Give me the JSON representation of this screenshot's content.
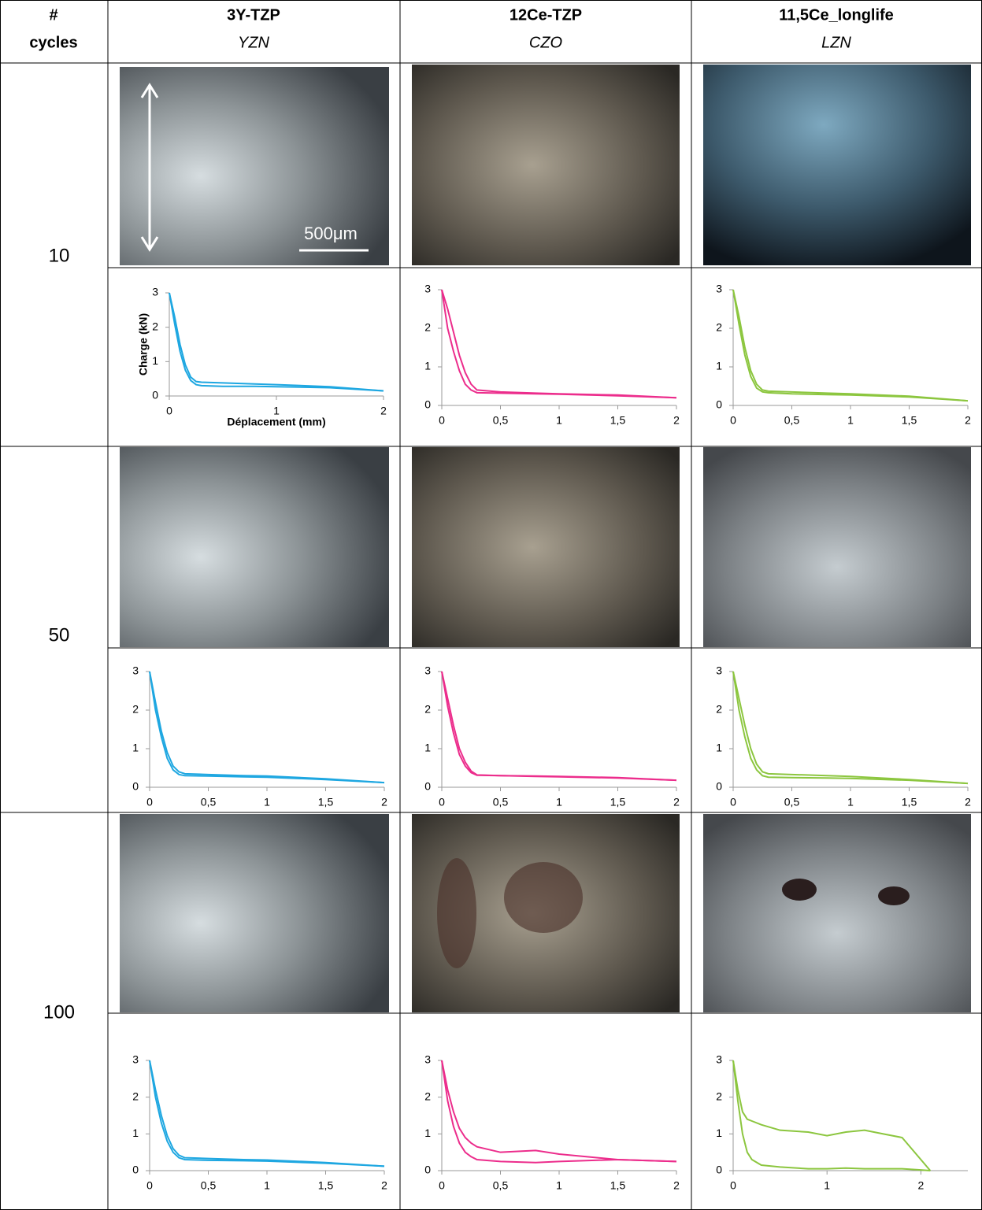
{
  "table": {
    "header": {
      "cycles": [
        "#",
        "cycles"
      ],
      "columns": [
        {
          "name": "3Y-TZP",
          "code": "YZN"
        },
        {
          "name": "12Ce-TZP",
          "code": "CZO"
        },
        {
          "name": "11,5Ce_longlife",
          "code": "LZN"
        }
      ]
    },
    "rows": [
      "10",
      "50",
      "100"
    ],
    "scale_bar": "500μm"
  },
  "chart_data": [
    {
      "type": "line",
      "y_label": "Charge (kN)",
      "x_label": "Déplacement (mm)",
      "x": [
        0,
        0.05,
        0.1,
        0.15,
        0.2,
        0.25,
        0.3,
        0.5,
        0.8,
        1,
        1.5,
        2
      ],
      "series": [
        {
          "color": "#1ea7e1",
          "values": [
            3,
            2.3,
            1.5,
            0.9,
            0.55,
            0.42,
            0.4,
            0.38,
            0.35,
            0.33,
            0.27,
            0.15
          ]
        },
        {
          "color": "#1ea7e1",
          "values": [
            3,
            2.1,
            1.3,
            0.75,
            0.45,
            0.33,
            0.3,
            0.28,
            0.28,
            0.27,
            0.24,
            0.15
          ]
        }
      ],
      "xlim": [
        0,
        2
      ],
      "ylim": [
        0,
        3
      ],
      "xticks": [
        0,
        1,
        2
      ],
      "yticks": [
        0,
        1,
        2,
        3
      ]
    },
    {
      "type": "line",
      "x": [
        0,
        0.05,
        0.1,
        0.15,
        0.2,
        0.25,
        0.3,
        0.5,
        0.8,
        1,
        1.5,
        2
      ],
      "series": [
        {
          "color": "#ec2d8c",
          "values": [
            3,
            2.5,
            1.9,
            1.3,
            0.85,
            0.55,
            0.4,
            0.35,
            0.32,
            0.3,
            0.27,
            0.2
          ]
        },
        {
          "color": "#ec2d8c",
          "values": [
            3,
            2.0,
            1.4,
            0.9,
            0.55,
            0.4,
            0.33,
            0.32,
            0.3,
            0.29,
            0.25,
            0.2
          ]
        }
      ],
      "xlim": [
        0,
        2
      ],
      "ylim": [
        0,
        3
      ],
      "xticks": [
        0,
        {
          "value": 0.5,
          "label": "0,5"
        },
        1,
        {
          "value": 1.5,
          "label": "1,5"
        },
        2
      ],
      "yticks": [
        0,
        1,
        2,
        3
      ]
    },
    {
      "type": "line",
      "x": [
        0,
        0.05,
        0.1,
        0.15,
        0.2,
        0.25,
        0.3,
        0.5,
        0.8,
        1,
        1.5,
        2
      ],
      "series": [
        {
          "color": "#8cc63f",
          "values": [
            3,
            2.3,
            1.5,
            0.9,
            0.55,
            0.4,
            0.37,
            0.35,
            0.32,
            0.3,
            0.24,
            0.12
          ]
        },
        {
          "color": "#8cc63f",
          "values": [
            3,
            2.1,
            1.3,
            0.75,
            0.45,
            0.35,
            0.33,
            0.3,
            0.28,
            0.27,
            0.22,
            0.12
          ]
        }
      ],
      "xlim": [
        0,
        2
      ],
      "ylim": [
        0,
        3
      ],
      "xticks": [
        0,
        {
          "value": 0.5,
          "label": "0,5"
        },
        1,
        {
          "value": 1.5,
          "label": "1,5"
        },
        2
      ],
      "yticks": [
        0,
        1,
        2,
        3
      ]
    },
    {
      "type": "line",
      "x": [
        0,
        0.05,
        0.1,
        0.15,
        0.2,
        0.25,
        0.3,
        0.5,
        0.8,
        1,
        1.5,
        2
      ],
      "series": [
        {
          "color": "#1ea7e1",
          "values": [
            3,
            2.2,
            1.45,
            0.9,
            0.55,
            0.4,
            0.35,
            0.33,
            0.3,
            0.29,
            0.22,
            0.12
          ]
        },
        {
          "color": "#1ea7e1",
          "values": [
            3,
            2.0,
            1.3,
            0.75,
            0.45,
            0.33,
            0.3,
            0.29,
            0.27,
            0.26,
            0.2,
            0.12
          ]
        }
      ],
      "xlim": [
        0,
        2
      ],
      "ylim": [
        0,
        3
      ],
      "xticks": [
        0,
        {
          "value": 0.5,
          "label": "0,5"
        },
        1,
        {
          "value": 1.5,
          "label": "1,5"
        },
        2
      ],
      "yticks": [
        0,
        1,
        2,
        3
      ]
    },
    {
      "type": "line",
      "x": [
        0,
        0.05,
        0.1,
        0.15,
        0.2,
        0.25,
        0.3,
        0.5,
        0.8,
        1,
        1.5,
        2
      ],
      "series": [
        {
          "color": "#ec2d8c",
          "values": [
            3,
            2.3,
            1.6,
            1.0,
            0.65,
            0.42,
            0.32,
            0.3,
            0.29,
            0.28,
            0.25,
            0.18
          ]
        },
        {
          "color": "#ec2d8c",
          "values": [
            3,
            2.1,
            1.4,
            0.85,
            0.55,
            0.38,
            0.31,
            0.3,
            0.28,
            0.27,
            0.24,
            0.18
          ]
        }
      ],
      "xlim": [
        0,
        2
      ],
      "ylim": [
        0,
        3
      ],
      "xticks": [
        0,
        {
          "value": 0.5,
          "label": "0,5"
        },
        1,
        {
          "value": 1.5,
          "label": "1,5"
        },
        2
      ],
      "yticks": [
        0,
        1,
        2,
        3
      ]
    },
    {
      "type": "line",
      "x": [
        0,
        0.05,
        0.1,
        0.15,
        0.2,
        0.25,
        0.3,
        0.5,
        0.8,
        1,
        1.5,
        2
      ],
      "series": [
        {
          "color": "#8cc63f",
          "values": [
            3,
            2.3,
            1.6,
            1.0,
            0.6,
            0.4,
            0.35,
            0.33,
            0.3,
            0.28,
            0.2,
            0.1
          ]
        },
        {
          "color": "#8cc63f",
          "values": [
            3,
            2.0,
            1.3,
            0.75,
            0.45,
            0.3,
            0.26,
            0.25,
            0.24,
            0.23,
            0.18,
            0.1
          ]
        }
      ],
      "xlim": [
        0,
        2
      ],
      "ylim": [
        0,
        3
      ],
      "xticks": [
        0,
        {
          "value": 0.5,
          "label": "0,5"
        },
        1,
        {
          "value": 1.5,
          "label": "1,5"
        },
        2
      ],
      "yticks": [
        0,
        1,
        2,
        3
      ]
    },
    {
      "type": "line",
      "x": [
        0,
        0.05,
        0.1,
        0.15,
        0.2,
        0.25,
        0.3,
        0.5,
        0.8,
        1,
        1.5,
        2
      ],
      "series": [
        {
          "color": "#1ea7e1",
          "values": [
            3,
            2.2,
            1.5,
            0.95,
            0.6,
            0.42,
            0.35,
            0.33,
            0.3,
            0.29,
            0.22,
            0.12
          ]
        },
        {
          "color": "#1ea7e1",
          "values": [
            3,
            2.0,
            1.3,
            0.8,
            0.5,
            0.35,
            0.3,
            0.28,
            0.27,
            0.26,
            0.2,
            0.12
          ]
        }
      ],
      "xlim": [
        0,
        2
      ],
      "ylim": [
        0,
        3
      ],
      "xticks": [
        0,
        {
          "value": 0.5,
          "label": "0,5"
        },
        1,
        {
          "value": 1.5,
          "label": "1,5"
        },
        2
      ],
      "yticks": [
        0,
        1,
        2,
        3
      ]
    },
    {
      "type": "line",
      "x": [
        0,
        0.05,
        0.1,
        0.15,
        0.2,
        0.25,
        0.3,
        0.5,
        0.8,
        1,
        1.5,
        2
      ],
      "series": [
        {
          "color": "#ec2d8c",
          "values": [
            3,
            2.2,
            1.6,
            1.15,
            0.9,
            0.75,
            0.65,
            0.5,
            0.55,
            0.45,
            0.3,
            0.25
          ]
        },
        {
          "color": "#ec2d8c",
          "values": [
            3,
            1.9,
            1.2,
            0.75,
            0.5,
            0.38,
            0.3,
            0.25,
            0.22,
            0.25,
            0.3,
            0.25
          ]
        }
      ],
      "xlim": [
        0,
        2
      ],
      "ylim": [
        0,
        3
      ],
      "xticks": [
        0,
        {
          "value": 0.5,
          "label": "0,5"
        },
        1,
        {
          "value": 1.5,
          "label": "1,5"
        },
        2
      ],
      "yticks": [
        0,
        1,
        2,
        3
      ]
    },
    {
      "type": "line",
      "x": [
        0,
        0.05,
        0.1,
        0.15,
        0.2,
        0.3,
        0.5,
        0.8,
        1,
        1.2,
        1.4,
        1.6,
        1.8,
        2,
        2.1
      ],
      "series": [
        {
          "color": "#8cc63f",
          "values": [
            3,
            2.2,
            1.6,
            1.4,
            1.35,
            1.25,
            1.1,
            1.05,
            0.95,
            1.05,
            1.1,
            1.0,
            0.9,
            0.3,
            0
          ]
        },
        {
          "color": "#8cc63f",
          "values": [
            3,
            1.9,
            1.0,
            0.5,
            0.3,
            0.15,
            0.1,
            0.05,
            0.05,
            0.07,
            0.05,
            0.05,
            0.05,
            0.02,
            0
          ]
        }
      ],
      "xlim": [
        0,
        2.5
      ],
      "ylim": [
        0,
        3
      ],
      "xticks": [
        0,
        1,
        2
      ],
      "yticks": [
        0,
        1,
        2,
        3
      ]
    }
  ]
}
